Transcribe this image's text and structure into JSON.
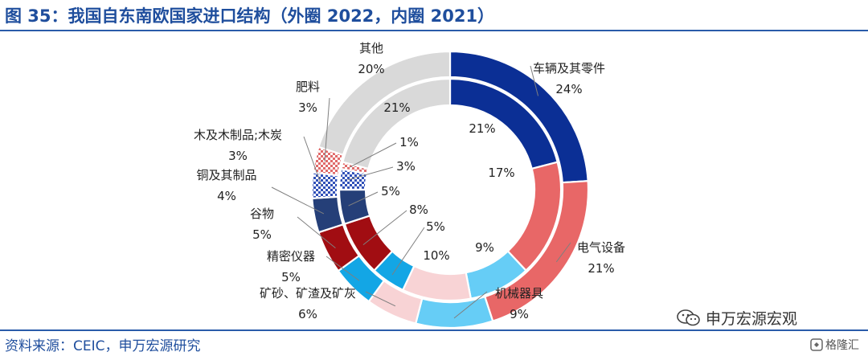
{
  "header": {
    "title": "图 35：我国自东南欧国家进口结构（外圈 2022，内圈 2021）"
  },
  "footer": {
    "source": "资料来源：CEIC，申万宏源研究"
  },
  "watermark": {
    "text": "申万宏源宏观",
    "icon": "wechat-icon"
  },
  "brand": {
    "text": "格隆汇",
    "icon": "gelonghui-logo-icon"
  },
  "chart_data": {
    "type": "donut",
    "title": "图 35：我国自东南欧国家进口结构（外圈 2022，内圈 2021）",
    "categories": [
      "车辆及其零件",
      "电气设备",
      "机械器具",
      "矿砂、矿渣及矿灰",
      "精密仪器",
      "谷物",
      "铜及其制品",
      "木及木制品;木炭",
      "肥料",
      "其他"
    ],
    "series": [
      {
        "name": "2022",
        "values": [
          24,
          21,
          9,
          6,
          5,
          5,
          4,
          3,
          3,
          20
        ]
      },
      {
        "name": "2021",
        "values": [
          21,
          17,
          9,
          10,
          5,
          8,
          5,
          3,
          1,
          21
        ]
      }
    ],
    "colors": [
      "#0b2f95",
      "#e86767",
      "#66cdf6",
      "#f8d3d5",
      "#13a6e5",
      "#a10d12",
      "#253f78",
      "#3050b8",
      "#e07070",
      "#d9d9d9"
    ],
    "outer_labels": [
      {
        "name": "车辆及其零件",
        "pct": "24%"
      },
      {
        "name": "电气设备",
        "pct": "21%"
      },
      {
        "name": "机械器具",
        "pct": "9%"
      },
      {
        "name": "矿砂、矿渣及矿灰",
        "pct": "6%"
      },
      {
        "name": "精密仪器",
        "pct": "5%"
      },
      {
        "name": "谷物",
        "pct": "5%"
      },
      {
        "name": "铜及其制品",
        "pct": "4%"
      },
      {
        "name": "木及木制品;木炭",
        "pct": "3%"
      },
      {
        "name": "肥料",
        "pct": "3%"
      },
      {
        "name": "其他",
        "pct": "20%"
      }
    ],
    "inner_labels": [
      "21%",
      "17%",
      "9%",
      "10%",
      "5%",
      "8%",
      "5%",
      "3%",
      "1%",
      "21%"
    ]
  }
}
